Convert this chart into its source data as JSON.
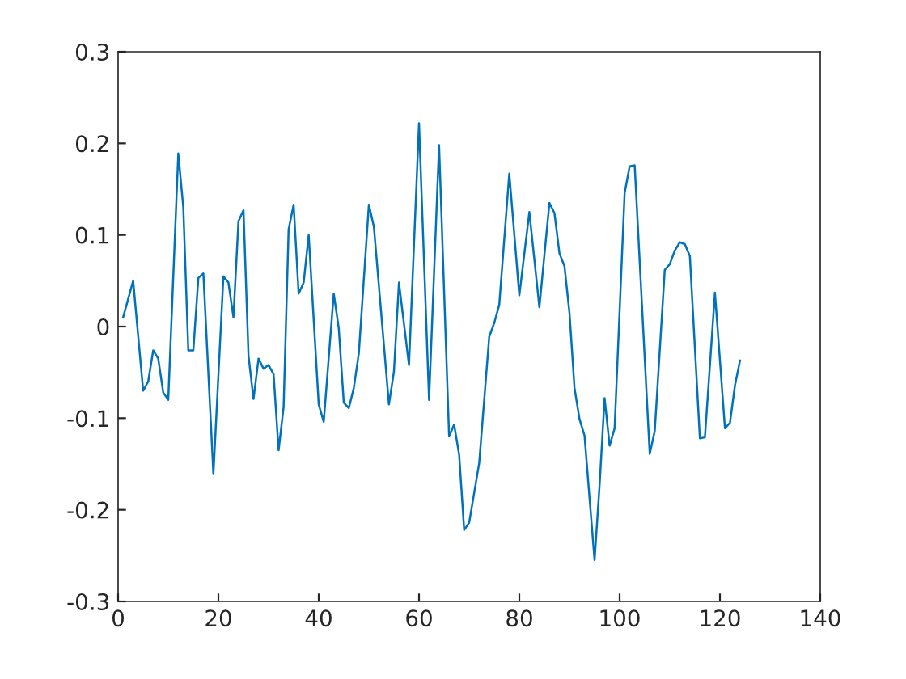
{
  "chart_data": {
    "type": "line",
    "xlim": [
      0,
      140
    ],
    "ylim": [
      -0.3,
      0.3
    ],
    "xticks": [
      0,
      20,
      40,
      60,
      80,
      100,
      120,
      140
    ],
    "yticks": [
      -0.3,
      -0.2,
      -0.1,
      0,
      0.1,
      0.2,
      0.3
    ],
    "grid": false,
    "legend": false,
    "marker": "none",
    "line_style": "solid",
    "series": [
      {
        "color": "#0072bd",
        "x": [
          1,
          3,
          5,
          6,
          7,
          8,
          9,
          10,
          12,
          13,
          14,
          15,
          16,
          17,
          19,
          21,
          22,
          23,
          24,
          25,
          26,
          27,
          28,
          29,
          30,
          31,
          32,
          33,
          34,
          35,
          36,
          37,
          38,
          40,
          41,
          43,
          44,
          45,
          46,
          47,
          48,
          50,
          51,
          54,
          55,
          56,
          58,
          60,
          62,
          64,
          66,
          67,
          68,
          69,
          70,
          72,
          74,
          75,
          76,
          78,
          80,
          82,
          84,
          86,
          87,
          88,
          89,
          90,
          91,
          92,
          93,
          94,
          95,
          96,
          97,
          98,
          99,
          101,
          102,
          103,
          106,
          107,
          109,
          110,
          111,
          112,
          113,
          114,
          116,
          117,
          119,
          121,
          122,
          123,
          124
        ],
        "values": [
          0.01,
          0.05,
          -0.07,
          -0.06,
          -0.026,
          -0.035,
          -0.072,
          -0.08,
          0.189,
          0.13,
          -0.026,
          -0.026,
          0.053,
          0.058,
          -0.161,
          0.055,
          0.048,
          0.01,
          0.115,
          0.127,
          -0.032,
          -0.079,
          -0.035,
          -0.046,
          -0.042,
          -0.052,
          -0.135,
          -0.088,
          0.106,
          0.133,
          0.036,
          0.048,
          0.1,
          -0.085,
          -0.104,
          0.036,
          -0.002,
          -0.083,
          -0.089,
          -0.067,
          -0.029,
          0.133,
          0.109,
          -0.085,
          -0.049,
          0.048,
          -0.042,
          0.222,
          -0.08,
          0.198,
          -0.12,
          -0.107,
          -0.14,
          -0.222,
          -0.214,
          -0.149,
          -0.011,
          0.004,
          0.024,
          0.167,
          0.034,
          0.125,
          0.021,
          0.135,
          0.124,
          0.08,
          0.066,
          0.015,
          -0.067,
          -0.101,
          -0.119,
          -0.187,
          -0.255,
          -0.173,
          -0.078,
          -0.13,
          -0.111,
          0.146,
          0.175,
          0.176,
          -0.139,
          -0.114,
          0.062,
          0.068,
          0.083,
          0.092,
          0.09,
          0.077,
          -0.122,
          -0.121,
          0.037,
          -0.111,
          -0.105,
          -0.064,
          -0.037
        ]
      }
    ]
  }
}
